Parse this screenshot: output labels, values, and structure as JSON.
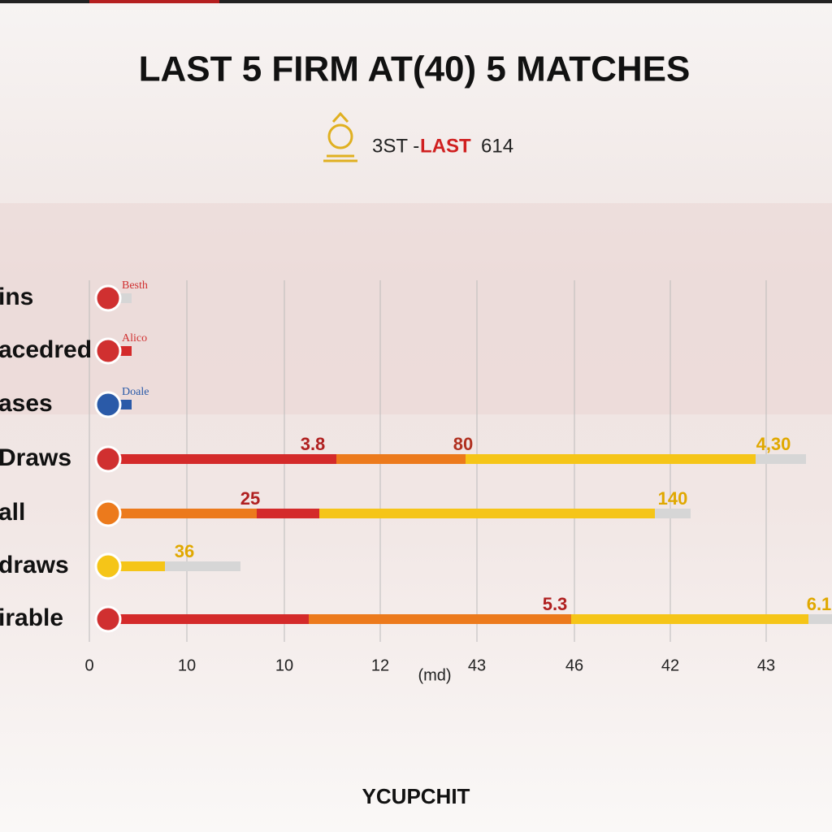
{
  "header": {
    "title": "LAST 5 FIRM AT(40) 5 MATCHES",
    "subtitle_left": "3ST -",
    "subtitle_highlight": "LAST",
    "subtitle_right": "614"
  },
  "rows": [
    {
      "label": "ins",
      "icon_label": "Besth"
    },
    {
      "label": "acedred",
      "icon_label": "Alico"
    },
    {
      "label": "ases",
      "icon_label": "Doale"
    },
    {
      "label": "Draws",
      "value_labels": [
        "3.8",
        "80",
        "4,30"
      ]
    },
    {
      "label": "all",
      "value_labels": [
        "25",
        "140"
      ]
    },
    {
      "label": "draws",
      "value_labels": [
        "36"
      ]
    },
    {
      "label": "irable",
      "value_labels": [
        "5.3",
        "6.1"
      ]
    }
  ],
  "axis": {
    "ticks": [
      "0",
      "10",
      "10",
      "12",
      "43",
      "46",
      "42",
      "43"
    ],
    "label": "(md)"
  },
  "footer": "YCUPCHIT"
}
